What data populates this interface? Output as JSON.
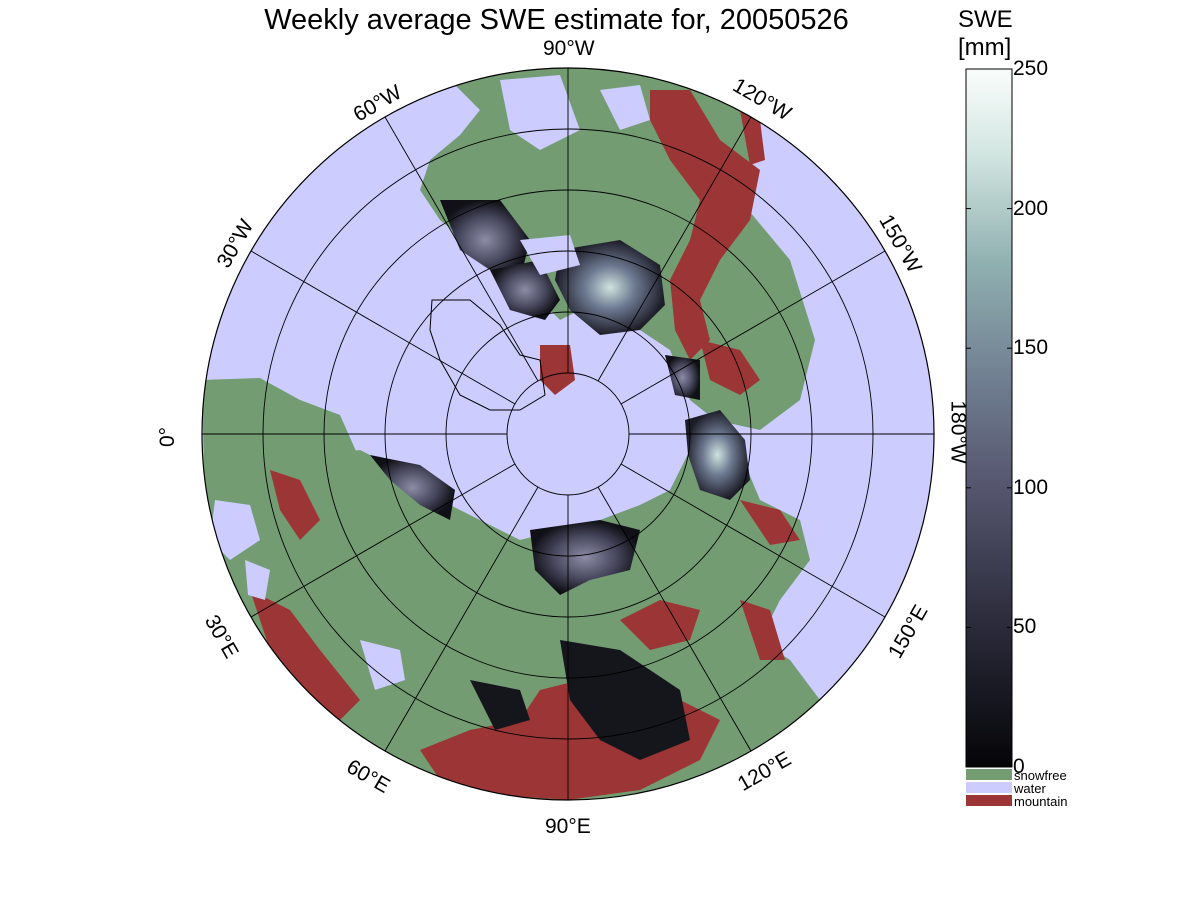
{
  "title": "Weekly average SWE estimate for, 20050526",
  "map": {
    "longitude_labels": [
      {
        "text": "90°W",
        "bearing": 0
      },
      {
        "text": "120°W",
        "bearing": 30
      },
      {
        "text": "150°W",
        "bearing": 60
      },
      {
        "text": "180°W",
        "bearing": 90
      },
      {
        "text": "150°E",
        "bearing": 120
      },
      {
        "text": "120°E",
        "bearing": 150
      },
      {
        "text": "90°E",
        "bearing": 180
      },
      {
        "text": "60°E",
        "bearing": 210
      },
      {
        "text": "30°E",
        "bearing": 240
      },
      {
        "text": "0°",
        "bearing": 270
      },
      {
        "text": "30°W",
        "bearing": 300
      },
      {
        "text": "60°W",
        "bearing": 330
      }
    ],
    "colors": {
      "water": "#ccccff",
      "snowfree": "#739c73",
      "mountain": "#9c3535",
      "swe_low": "#0a0a12",
      "swe_high": "#f4faf8"
    }
  },
  "colorbar": {
    "title_line1": "SWE",
    "title_line2": "[mm]",
    "min": 0,
    "max": 250,
    "ticks": [
      {
        "label": "250",
        "value": 250
      },
      {
        "label": "200",
        "value": 200
      },
      {
        "label": "150",
        "value": 150
      },
      {
        "label": "100",
        "value": 100
      },
      {
        "label": "50",
        "value": 50
      },
      {
        "label": "0",
        "value": 0
      }
    ]
  },
  "legend": [
    {
      "label": "snowfree",
      "color": "#739c73"
    },
    {
      "label": "water",
      "color": "#ccccff"
    },
    {
      "label": "mountain",
      "color": "#9c3535"
    }
  ]
}
